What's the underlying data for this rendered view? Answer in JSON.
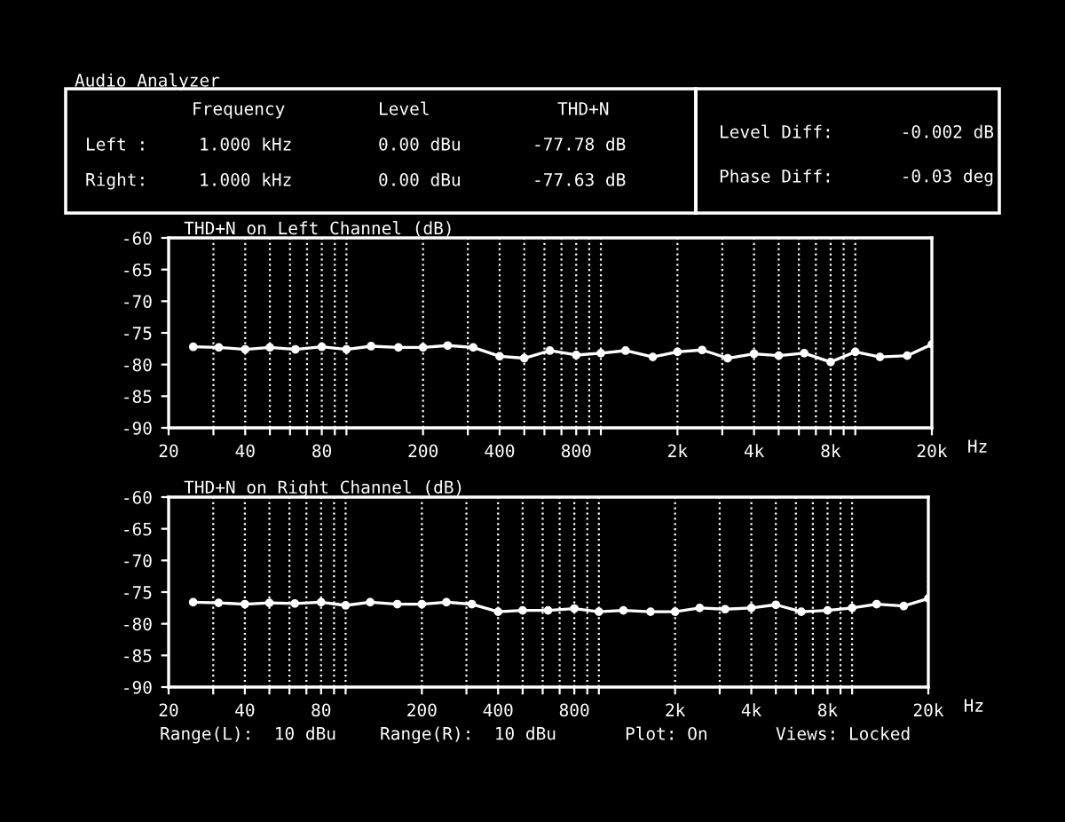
{
  "chart_data": [
    {
      "type": "line",
      "title": "THD+N on Left Channel (dB)",
      "xlabel": "Hz",
      "log": "x",
      "grid": "x",
      "marker": "circle",
      "line_style": "solid",
      "annotations": [
        "Audio Analyzer",
        "Frequency",
        "Level",
        "THD+N",
        "Left :",
        "1.000 kHz",
        "0.00 dBu",
        "-77.78 dB",
        "Right:",
        "1.000 kHz",
        "0.00 dBu",
        "-77.63 dB",
        "Level Diff:",
        "-0.002 dB",
        "Phase Diff:",
        "-0.03 deg"
      ],
      "x": [
        25,
        31.5,
        40,
        50,
        63,
        80,
        100,
        125,
        160,
        200,
        250,
        315,
        400,
        500,
        630,
        800,
        1000,
        1250,
        1600,
        2000,
        2500,
        3150,
        4000,
        5000,
        6300,
        8000,
        10000,
        12500,
        16000,
        20000
      ],
      "series": [
        {
          "color": "#ffffff",
          "values": [
            -77.2,
            -77.3,
            -77.6,
            -77.3,
            -77.6,
            -77.2,
            -77.6,
            -77.1,
            -77.3,
            -77.3,
            -77.0,
            -77.3,
            -78.7,
            -79.0,
            -77.8,
            -78.5,
            -78.2,
            -77.8,
            -78.8,
            -78.0,
            -77.7,
            -79.0,
            -78.3,
            -78.6,
            -78.2,
            -79.6,
            -78.0,
            -78.8,
            -78.6,
            -76.8
          ]
        }
      ],
      "xlim": [
        20,
        20000
      ],
      "ylim": [
        -90,
        -60
      ],
      "xticks": [
        20,
        {
          "value": 30,
          "label": null
        },
        40,
        {
          "value": 50,
          "label": null
        },
        {
          "value": 60,
          "label": null
        },
        {
          "value": 70,
          "label": null
        },
        80,
        {
          "value": 90,
          "label": null
        },
        {
          "value": 100,
          "label": null
        },
        200,
        {
          "value": 300,
          "label": null
        },
        400,
        {
          "value": 500,
          "label": null
        },
        {
          "value": 600,
          "label": null
        },
        {
          "value": 700,
          "label": null
        },
        800,
        {
          "value": 900,
          "label": null
        },
        {
          "value": 1000,
          "label": null
        },
        {
          "value": 2000,
          "label": "2k"
        },
        {
          "value": 3000,
          "label": null
        },
        {
          "value": 4000,
          "label": "4k"
        },
        {
          "value": 5000,
          "label": null
        },
        {
          "value": 6000,
          "label": null
        },
        {
          "value": 7000,
          "label": null
        },
        {
          "value": 8000,
          "label": "8k"
        },
        {
          "value": 9000,
          "label": null
        },
        {
          "value": 10000,
          "label": null
        },
        {
          "value": 20000,
          "label": "20k"
        }
      ],
      "yticks": [
        -60,
        -65,
        -70,
        -75,
        -80,
        -85,
        -90
      ]
    },
    {
      "type": "line",
      "title": "THD+N on Right Channel (dB)",
      "xlabel": "Hz",
      "log": "x",
      "grid": "x",
      "marker": "circle",
      "line_style": "solid",
      "annotations": [
        "Range(L):  10 dBu",
        "Range(R):  10 dBu",
        "Plot: On",
        "Views: Locked"
      ],
      "x": [
        25,
        31.5,
        40,
        50,
        63,
        80,
        100,
        125,
        160,
        200,
        250,
        315,
        400,
        500,
        630,
        800,
        1000,
        1250,
        1600,
        2000,
        2500,
        3150,
        4000,
        5000,
        6300,
        8000,
        10000,
        12500,
        16000,
        20000
      ],
      "series": [
        {
          "color": "#ffffff",
          "values": [
            -76.6,
            -76.7,
            -76.9,
            -76.7,
            -76.8,
            -76.6,
            -77.1,
            -76.6,
            -76.9,
            -76.9,
            -76.6,
            -76.9,
            -78.1,
            -77.9,
            -77.9,
            -77.6,
            -78.1,
            -77.9,
            -78.1,
            -78.1,
            -77.5,
            -77.7,
            -77.5,
            -77.0,
            -78.1,
            -77.9,
            -77.5,
            -76.9,
            -77.2,
            -76.0
          ]
        }
      ],
      "xlim": [
        20,
        20000
      ],
      "ylim": [
        -90,
        -60
      ],
      "xticks": [
        20,
        {
          "value": 30,
          "label": null
        },
        40,
        {
          "value": 50,
          "label": null
        },
        {
          "value": 60,
          "label": null
        },
        {
          "value": 70,
          "label": null
        },
        80,
        {
          "value": 90,
          "label": null
        },
        {
          "value": 100,
          "label": null
        },
        200,
        {
          "value": 300,
          "label": null
        },
        400,
        {
          "value": 500,
          "label": null
        },
        {
          "value": 600,
          "label": null
        },
        {
          "value": 700,
          "label": null
        },
        800,
        {
          "value": 900,
          "label": null
        },
        {
          "value": 1000,
          "label": null
        },
        {
          "value": 2000,
          "label": "2k"
        },
        {
          "value": 3000,
          "label": null
        },
        {
          "value": 4000,
          "label": "4k"
        },
        {
          "value": 5000,
          "label": null
        },
        {
          "value": 6000,
          "label": null
        },
        {
          "value": 7000,
          "label": null
        },
        {
          "value": 8000,
          "label": "8k"
        },
        {
          "value": 9000,
          "label": null
        },
        {
          "value": 10000,
          "label": null
        },
        {
          "value": 20000,
          "label": "20k"
        }
      ],
      "yticks": [
        -60,
        -65,
        -70,
        -75,
        -80,
        -85,
        -90
      ]
    }
  ]
}
